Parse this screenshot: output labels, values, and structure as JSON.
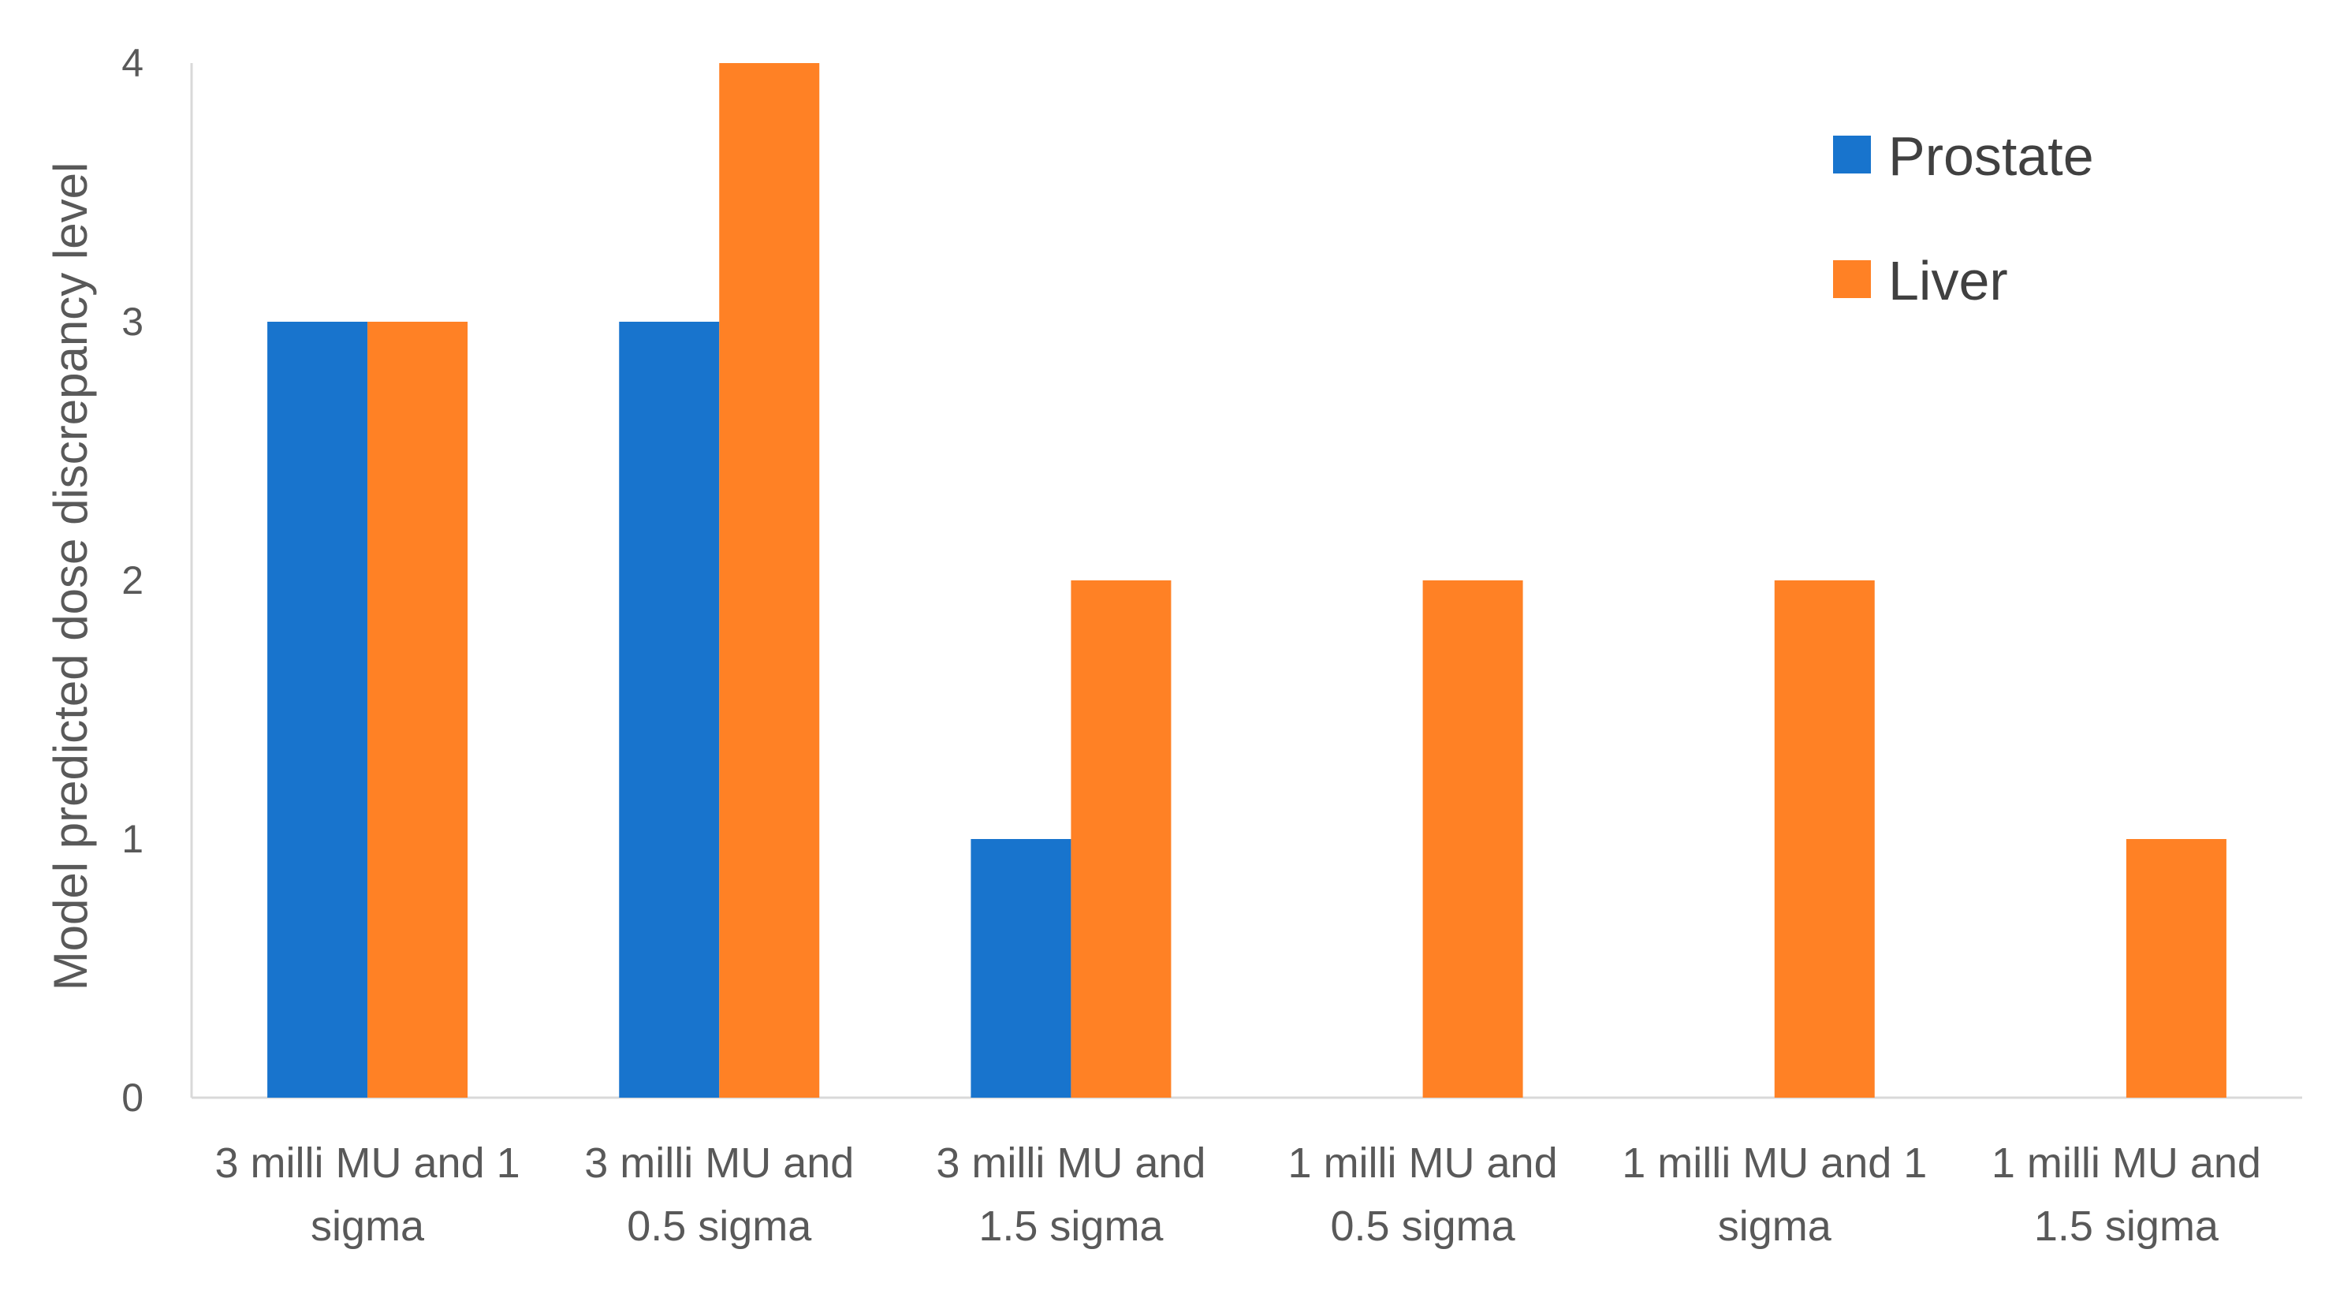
{
  "chart_data": {
    "type": "bar",
    "title": "",
    "ylabel": "Model predicted dose discrepancy level",
    "xlabel": "",
    "ylim": [
      0,
      4
    ],
    "yticks": [
      0,
      1,
      2,
      3,
      4
    ],
    "grid": false,
    "legend_position": "top-right",
    "categories": [
      [
        "3 milli MU and 1",
        "sigma"
      ],
      [
        "3 milli MU and",
        "0.5 sigma"
      ],
      [
        "3 milli MU and",
        "1.5 sigma"
      ],
      [
        "1 milli MU and",
        "0.5 sigma"
      ],
      [
        "1 milli MU and 1",
        "sigma"
      ],
      [
        "1 milli MU and",
        "1.5 sigma"
      ]
    ],
    "series": [
      {
        "name": "Prostate",
        "color": "#1874CD",
        "values": [
          3,
          3,
          1,
          0,
          0,
          0
        ]
      },
      {
        "name": "Liver",
        "color": "#FF8125",
        "values": [
          3,
          4,
          2,
          2,
          2,
          1
        ]
      }
    ]
  }
}
